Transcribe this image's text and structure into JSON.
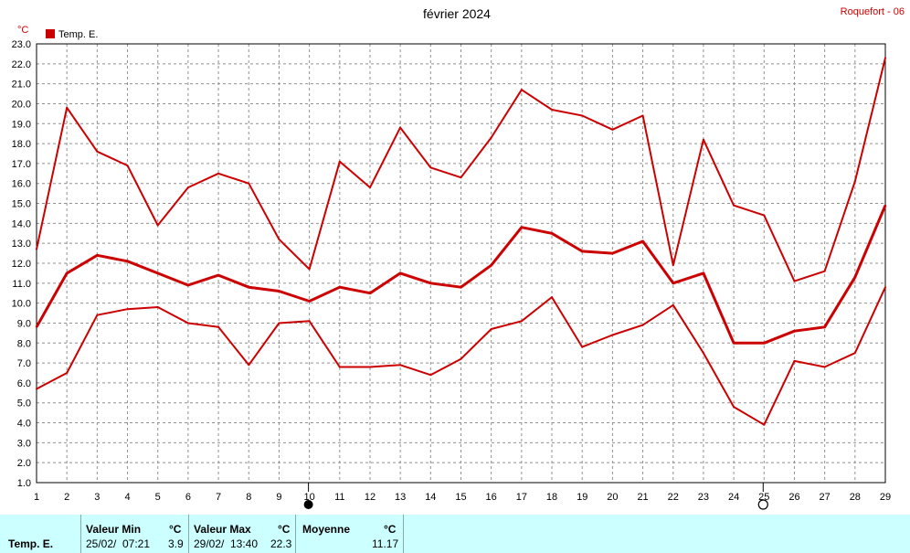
{
  "title": "février 2024",
  "station": "Roquefort - 06",
  "unit": "°C",
  "legend": {
    "label": "Temp. E.",
    "color": "#cc0000"
  },
  "chart_data": {
    "type": "line",
    "x": [
      1,
      2,
      3,
      4,
      5,
      6,
      7,
      8,
      9,
      10,
      11,
      12,
      13,
      14,
      15,
      16,
      17,
      18,
      19,
      20,
      21,
      22,
      23,
      24,
      25,
      26,
      27,
      28,
      29
    ],
    "ylim": [
      1.0,
      23.0
    ],
    "yticks": [
      "1.0",
      "2.0",
      "3.0",
      "4.0",
      "5.0",
      "6.0",
      "7.0",
      "8.0",
      "9.0",
      "10.0",
      "11.0",
      "12.0",
      "13.0",
      "14.0",
      "15.0",
      "16.0",
      "17.0",
      "18.0",
      "19.0",
      "20.0",
      "21.0",
      "22.0",
      "23.0"
    ],
    "grid": true,
    "series": [
      {
        "role": "max",
        "color": "#cc0000",
        "values": [
          12.7,
          19.8,
          17.6,
          16.9,
          13.9,
          15.8,
          16.5,
          16.0,
          13.2,
          11.7,
          17.1,
          15.8,
          18.8,
          16.8,
          16.3,
          18.3,
          20.7,
          19.7,
          19.4,
          18.7,
          19.4,
          11.9,
          18.2,
          14.9,
          14.4,
          11.1,
          11.6,
          16.1,
          22.3
        ]
      },
      {
        "role": "mean",
        "color": "#cc0000",
        "values": [
          8.8,
          11.5,
          12.4,
          12.1,
          11.5,
          10.9,
          11.4,
          10.8,
          10.6,
          10.1,
          10.8,
          10.5,
          11.5,
          11.0,
          10.8,
          11.9,
          13.8,
          13.5,
          12.6,
          12.5,
          13.1,
          11.0,
          11.5,
          8.0,
          8.0,
          8.6,
          8.8,
          11.3,
          14.9
        ]
      },
      {
        "role": "min",
        "color": "#cc0000",
        "values": [
          5.7,
          6.5,
          9.4,
          9.7,
          9.8,
          9.0,
          8.8,
          6.9,
          9.0,
          9.1,
          6.8,
          6.8,
          6.9,
          6.4,
          7.2,
          8.7,
          9.1,
          10.3,
          7.8,
          8.4,
          8.9,
          9.9,
          7.5,
          4.8,
          3.9,
          7.1,
          6.8,
          7.5,
          10.8
        ]
      }
    ],
    "moon_phases": [
      {
        "day": 10,
        "phase": "new-moon"
      },
      {
        "day": 25,
        "phase": "full-moon"
      }
    ]
  },
  "stats": {
    "row_label": "Temp. E.",
    "min": {
      "header": "Valeur Min",
      "unit": "°C",
      "date": "25/02/",
      "time": "07:21",
      "value": "3.9"
    },
    "max": {
      "header": "Valeur Max",
      "unit": "°C",
      "date": "29/02/",
      "time": "13:40",
      "value": "22.3"
    },
    "avg": {
      "header": "Moyenne",
      "unit": "°C",
      "value": "11.17"
    }
  }
}
